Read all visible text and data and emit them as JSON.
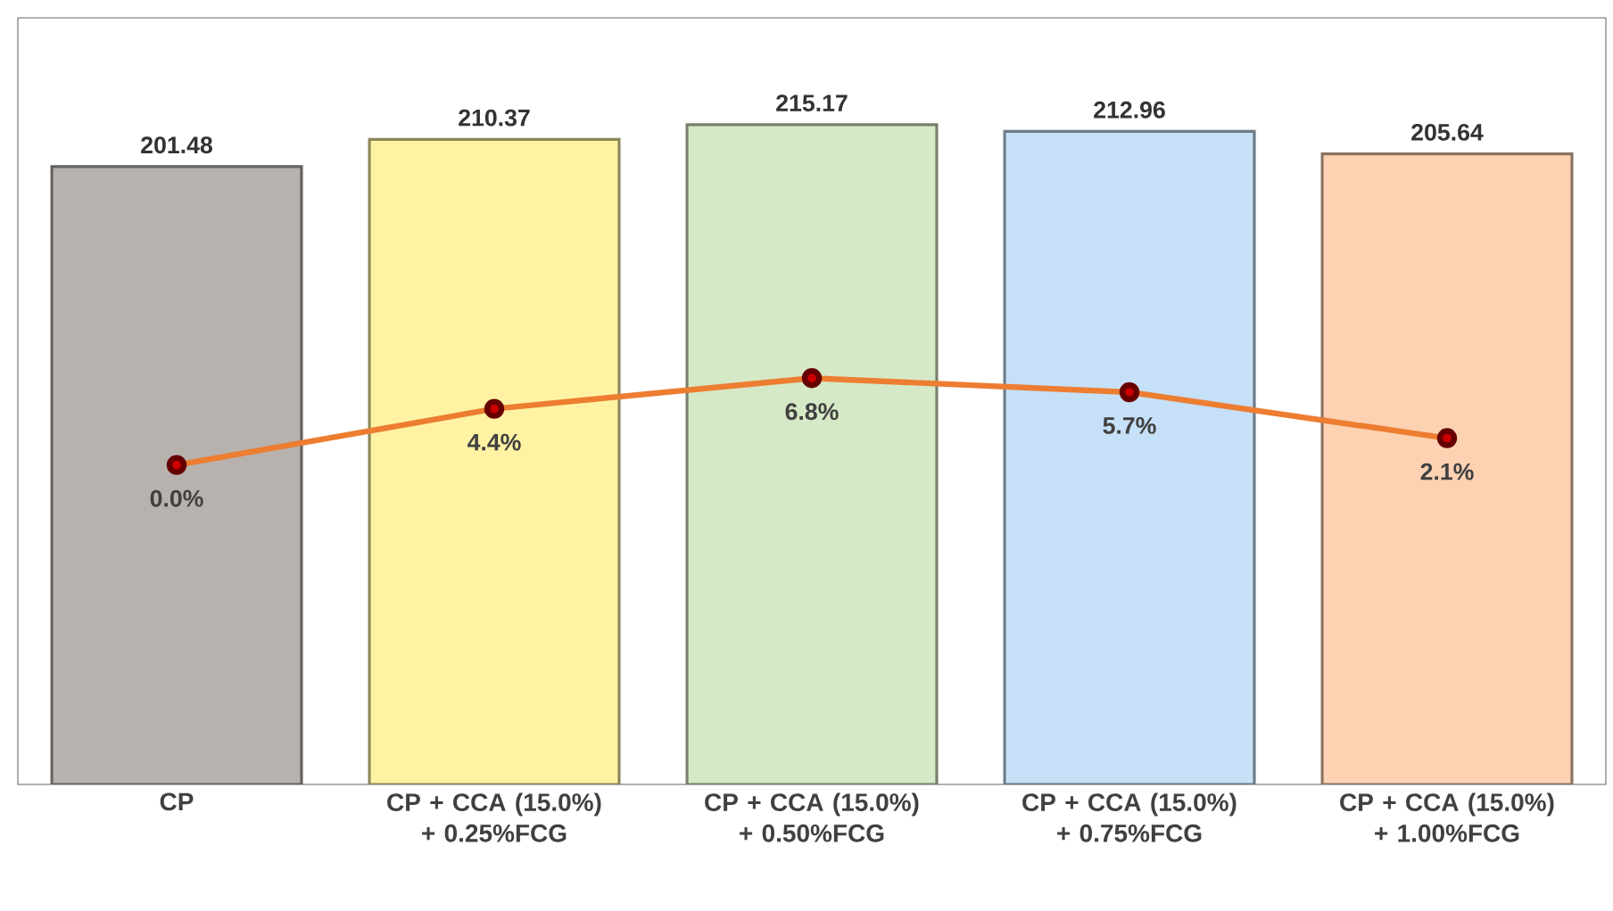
{
  "chart_data": {
    "type": "bar",
    "categories": [
      "CP",
      "CP + CCA (15.0%) + 0.25%FCG",
      "CP + CCA (15.0%) + 0.50%FCG",
      "CP + CCA (15.0%) + 0.75%FCG",
      "CP + CCA (15.0%) + 1.00%FCG"
    ],
    "ylim": [
      0,
      250
    ],
    "y2lim": [
      -25,
      35
    ],
    "grid": false,
    "marker": "circle",
    "series": [
      {
        "colors": [
          "#b7b2ae",
          "#fff3a3",
          "#d6e9c6",
          "#c6e0f7",
          "#fdd2b2"
        ],
        "values": [
          201.48,
          210.37,
          215.17,
          212.96,
          205.64
        ],
        "value_labels": [
          "201.48",
          "210.37",
          "215.17",
          "212.96",
          "205.64"
        ]
      },
      {
        "type": "line",
        "axis": "y2",
        "color": "#ed7d31",
        "values": [
          0.0,
          4.4,
          6.8,
          5.7,
          2.1
        ],
        "value_labels": [
          "0.0%",
          "4.4%",
          "6.8%",
          "5.7%",
          "2.1%"
        ]
      }
    ]
  }
}
